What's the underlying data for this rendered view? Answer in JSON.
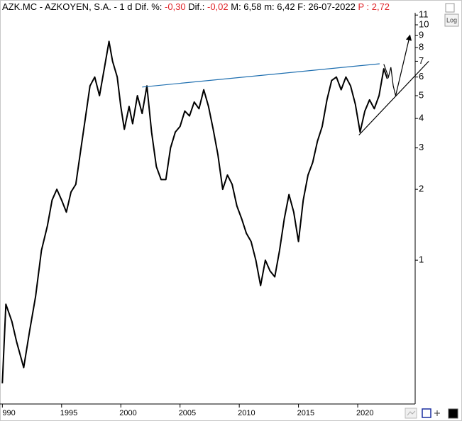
{
  "chart_data": {
    "type": "line",
    "header": [
      {
        "text": "AZK.MC - AZKOYEN, S.A. -  1 d Dif. %: ",
        "color": "#000000"
      },
      {
        "text": "-0,30",
        "color": "#e0262b"
      },
      {
        "text": " Dif.: ",
        "color": "#000000"
      },
      {
        "text": "-0,02",
        "color": "#e0262b"
      },
      {
        "text": " M: 6,58  m: 6,42  F: 26-07-2022 ",
        "color": "#000000"
      },
      {
        "text": "P : 2,72",
        "color": "#e0262b"
      }
    ],
    "log_button": "Log",
    "log_scale": true,
    "color": "#000000",
    "x": [
      1990.0,
      1990.3,
      1990.8,
      1991.2,
      1991.8,
      1992.3,
      1992.8,
      1993.3,
      1993.8,
      1994.2,
      1994.6,
      1995.0,
      1995.4,
      1995.8,
      1996.2,
      1996.6,
      1997.0,
      1997.4,
      1997.8,
      1998.2,
      1998.6,
      1999.0,
      1999.3,
      1999.7,
      2000.0,
      2000.3,
      2000.7,
      2001.0,
      2001.4,
      2001.8,
      2002.2,
      2002.6,
      2003.0,
      2003.4,
      2003.8,
      2004.2,
      2004.6,
      2005.0,
      2005.4,
      2005.8,
      2006.2,
      2006.6,
      2007.0,
      2007.4,
      2007.8,
      2008.2,
      2008.6,
      2009.0,
      2009.4,
      2009.8,
      2010.2,
      2010.6,
      2011.0,
      2011.4,
      2011.8,
      2012.2,
      2012.6,
      2013.0,
      2013.4,
      2013.8,
      2014.2,
      2014.6,
      2015.0,
      2015.4,
      2015.8,
      2016.2,
      2016.6,
      2017.0,
      2017.4,
      2017.8,
      2018.2,
      2018.6,
      2019.0,
      2019.4,
      2019.8,
      2020.2,
      2020.6,
      2021.0,
      2021.4,
      2021.8,
      2022.2,
      2022.5
    ],
    "values": [
      0.3,
      0.65,
      0.55,
      0.45,
      0.35,
      0.5,
      0.7,
      1.1,
      1.4,
      1.8,
      2.0,
      1.8,
      1.6,
      1.95,
      2.1,
      2.9,
      4.0,
      5.5,
      6.0,
      5.0,
      6.5,
      8.5,
      7.0,
      6.0,
      4.5,
      3.6,
      4.5,
      3.8,
      5.0,
      4.2,
      5.5,
      3.5,
      2.5,
      2.2,
      2.2,
      3.0,
      3.5,
      3.7,
      4.3,
      4.1,
      4.7,
      4.4,
      5.3,
      4.5,
      3.6,
      2.8,
      2.0,
      2.3,
      2.1,
      1.7,
      1.5,
      1.3,
      1.2,
      1.0,
      0.78,
      1.0,
      0.9,
      0.85,
      1.1,
      1.5,
      1.9,
      1.6,
      1.2,
      1.8,
      2.3,
      2.6,
      3.2,
      3.7,
      4.8,
      5.8,
      6.0,
      5.3,
      6.0,
      5.5,
      4.6,
      3.5,
      4.3,
      4.8,
      4.4,
      5.0,
      6.5,
      5.9
    ],
    "xlim": [
      1989.8,
      2024.85
    ],
    "xticks": [
      {
        "value": 1990,
        "label": "990"
      },
      1995,
      2000,
      2005,
      2010,
      2015,
      2020
    ],
    "ylim": [
      0.245,
      11.25
    ],
    "yticks": [
      1,
      2,
      3,
      4,
      5,
      6,
      7,
      8,
      9,
      10,
      11
    ],
    "lines": [
      {
        "color": "#1f6fb0",
        "points": [
          [
            2001.8,
            5.44
          ],
          [
            2021.85,
            6.83
          ]
        ]
      },
      {
        "color": "#000000",
        "points": [
          [
            2020.1,
            3.4
          ],
          [
            2026.0,
            7.0
          ]
        ]
      },
      {
        "color": "#000000",
        "points": [
          [
            2022.2,
            6.8
          ],
          [
            2022.6,
            6.0
          ],
          [
            2022.8,
            6.6
          ],
          [
            2023.0,
            5.5
          ],
          [
            2023.2,
            5.0
          ],
          [
            2024.4,
            9.0
          ]
        ]
      }
    ]
  }
}
